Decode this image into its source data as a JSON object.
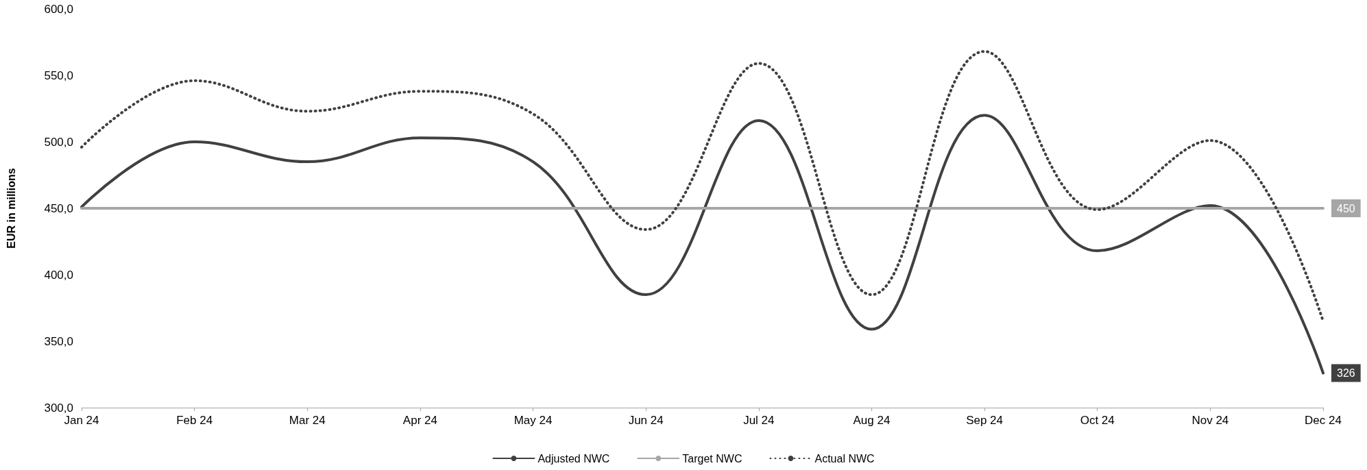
{
  "chart_data": {
    "type": "line",
    "ylabel": "EUR in millions",
    "categories": [
      "Jan 24",
      "Feb 24",
      "Mar 24",
      "Apr 24",
      "May 24",
      "Jun 24",
      "Jul 24",
      "Aug 24",
      "Sep 24",
      "Oct 24",
      "Nov 24",
      "Dec 24"
    ],
    "series": [
      {
        "name": "Adjusted NWC",
        "color": "#404040",
        "line_style": "solid",
        "values": [
          451,
          500,
          485,
          503,
          485,
          385,
          516,
          359,
          520,
          418,
          452,
          326
        ],
        "value_labels": [
          null,
          null,
          null,
          null,
          null,
          null,
          null,
          null,
          null,
          null,
          null,
          "326"
        ]
      },
      {
        "name": "Target NWC",
        "color": "#a6a6a6",
        "line_style": "solid",
        "values": [
          450,
          450,
          450,
          450,
          450,
          450,
          450,
          450,
          450,
          450,
          450,
          450
        ],
        "value_labels": [
          null,
          null,
          null,
          null,
          null,
          null,
          null,
          null,
          null,
          null,
          null,
          "450"
        ]
      },
      {
        "name": "Actual NWC",
        "color": "#404040",
        "line_style": "dotted",
        "values": [
          496,
          546,
          523,
          538,
          521,
          434,
          559,
          385,
          568,
          449,
          501,
          365
        ]
      }
    ],
    "ylim": [
      300,
      600
    ],
    "yticks": [
      {
        "value": 300,
        "label": "300,0"
      },
      {
        "value": 350,
        "label": "350,0"
      },
      {
        "value": 400,
        "label": "400,0"
      },
      {
        "value": 450,
        "label": "450,0"
      },
      {
        "value": 500,
        "label": "500,0"
      },
      {
        "value": 550,
        "label": "550,0"
      },
      {
        "value": 600,
        "label": "600,0"
      }
    ],
    "grid": false,
    "legend": "bottom",
    "marker": "none"
  }
}
